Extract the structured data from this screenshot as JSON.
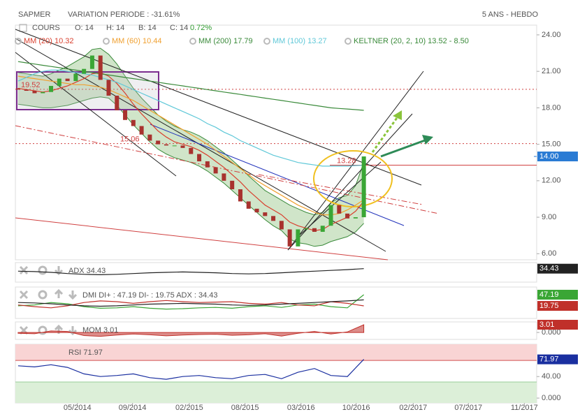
{
  "header": {
    "symbol": "SAPMER",
    "variation": "VARIATION PERIODE : -31.61%",
    "period": "5 ANS - HEBDO",
    "cours": "COURS",
    "open": "O: 14",
    "high": "H: 14",
    "low": "B: 14",
    "close": "C: 14",
    "change": "0.72%"
  },
  "chart_data": [
    {
      "type": "candlestick",
      "xlim": [
        0,
        190
      ],
      "ylim": [
        5.5,
        24.8
      ],
      "yticks": [
        {
          "value": 6,
          "label": "6.00"
        },
        {
          "value": 9,
          "label": "9.00"
        },
        {
          "value": 12,
          "label": "12.00"
        },
        {
          "value": 15,
          "label": "15.00"
        },
        {
          "value": 18,
          "label": "18.00"
        },
        {
          "value": 21,
          "label": "21.00"
        },
        {
          "value": 24,
          "label": "24.00"
        }
      ],
      "x": [
        1,
        4,
        7,
        10,
        13,
        16,
        19,
        22,
        25,
        28,
        31,
        34,
        37,
        40,
        43,
        46,
        49,
        52,
        55,
        58,
        61,
        64,
        67,
        70,
        73,
        76,
        79,
        82,
        85,
        88,
        91,
        94,
        97,
        100,
        103,
        106,
        109,
        112,
        115,
        118,
        121,
        124,
        127
      ],
      "open": [
        19.6,
        19.5,
        19.4,
        19.2,
        19.3,
        19.8,
        20.4,
        20.2,
        20.8,
        21.2,
        22.3,
        20.3,
        19.0,
        17.8,
        17.0,
        16.5,
        15.8,
        15.3,
        15.0,
        14.9,
        14.9,
        14.7,
        14.2,
        13.6,
        13.1,
        12.6,
        12.0,
        11.3,
        10.3,
        9.7,
        9.4,
        9.1,
        8.7,
        8.0,
        6.6,
        8.0,
        8.1,
        7.8,
        8.3,
        10.0,
        9.3,
        8.9,
        9.0
      ],
      "close": [
        19.5,
        19.4,
        19.2,
        19.3,
        19.8,
        20.4,
        20.2,
        20.8,
        21.2,
        22.3,
        20.3,
        19.0,
        17.8,
        17.0,
        16.5,
        15.8,
        15.3,
        15.0,
        14.9,
        14.9,
        14.7,
        14.2,
        13.6,
        13.1,
        12.6,
        12.0,
        11.3,
        10.3,
        9.7,
        9.4,
        9.1,
        8.7,
        8.0,
        6.6,
        8.0,
        8.1,
        7.8,
        8.3,
        10.0,
        9.3,
        8.9,
        9.0,
        14
      ],
      "up_color": "#3aa635",
      "down_color": "#a8322e",
      "series": [
        {
          "name": "MM (20) 10.32",
          "color": "#d9402f",
          "values": [
            19.6,
            19.5,
            19.4,
            19.3,
            19.4,
            19.6,
            19.8,
            20.1,
            20.4,
            20.8,
            20.9,
            20.6,
            20.0,
            19.2,
            18.3,
            17.5,
            16.8,
            16.1,
            15.6,
            15.2,
            15.0,
            14.8,
            14.5,
            14.1,
            13.6,
            13.1,
            12.5,
            11.9,
            11.2,
            10.6,
            10.0,
            9.6,
            9.2,
            8.6,
            8.3,
            8.1,
            7.9,
            8.0,
            8.4,
            8.7,
            9.0,
            9.5,
            10.32
          ]
        },
        {
          "name": "MM (60) 10.44",
          "color": "#f0a030",
          "values": [
            20.6,
            20.5,
            20.4,
            20.3,
            20.2,
            20.1,
            20.0,
            19.9,
            19.9,
            19.8,
            19.7,
            19.5,
            19.2,
            18.9,
            18.6,
            18.2,
            17.8,
            17.4,
            17.0,
            16.6,
            16.2,
            15.8,
            15.4,
            15.0,
            14.5,
            14.0,
            13.5,
            13.0,
            12.5,
            12.0,
            11.6,
            11.2,
            10.8,
            10.4,
            10.0,
            9.7,
            9.4,
            9.2,
            9.2,
            9.3,
            9.6,
            10.0,
            10.44
          ]
        },
        {
          "name": "MM (200) 17.79",
          "color": "#3a8a3a",
          "values": [
            21.8,
            21.7,
            21.6,
            21.5,
            21.4,
            21.3,
            21.2,
            21.1,
            21.0,
            20.9,
            20.8,
            20.7,
            20.6,
            20.5,
            20.4,
            20.3,
            20.2,
            20.1,
            20.0,
            19.9,
            19.8,
            19.7,
            19.6,
            19.5,
            19.4,
            19.3,
            19.2,
            19.1,
            19.0,
            18.9,
            18.8,
            18.7,
            18.6,
            18.5,
            18.4,
            18.3,
            18.2,
            18.1,
            18.0,
            17.95,
            17.9,
            17.85,
            17.79
          ]
        },
        {
          "name": "MM (100) 13.27",
          "color": "#5fc8d8",
          "values": [
            20.2,
            20.5,
            20.8,
            21.0,
            21.1,
            21.1,
            21.0,
            20.9,
            20.8,
            20.7,
            20.5,
            20.3,
            20.1,
            19.8,
            19.5,
            19.2,
            18.9,
            18.6,
            18.3,
            18.0,
            17.7,
            17.4,
            17.1,
            16.7,
            16.4,
            16.0,
            15.7,
            15.3,
            15.0,
            14.7,
            14.4,
            14.1,
            13.9,
            13.7,
            13.5,
            13.4,
            13.3,
            13.2,
            13.2,
            13.2,
            13.2,
            13.25,
            13.27
          ]
        }
      ],
      "keltner": {
        "name": "KELTNER (20, 2, 10) 13.52 - 8.50",
        "color": "#3a8a3a",
        "upper": [
          20.9,
          20.8,
          20.7,
          20.6,
          20.8,
          21.1,
          21.4,
          21.8,
          22.2,
          22.8,
          22.9,
          22.4,
          21.6,
          20.6,
          19.6,
          18.8,
          18.1,
          17.4,
          16.9,
          16.5,
          16.2,
          16.0,
          15.7,
          15.3,
          14.8,
          14.3,
          13.7,
          13.1,
          12.4,
          11.8,
          11.2,
          10.8,
          10.4,
          10.0,
          9.7,
          9.4,
          9.2,
          9.4,
          10.2,
          10.6,
          10.8,
          11.6,
          13.52
        ],
        "lower": [
          18.3,
          18.2,
          18.1,
          18.0,
          18.0,
          18.1,
          18.2,
          18.4,
          18.6,
          18.8,
          18.9,
          18.8,
          18.2,
          17.4,
          16.6,
          15.9,
          15.2,
          14.6,
          14.2,
          13.9,
          13.7,
          13.5,
          13.2,
          12.8,
          12.3,
          11.8,
          11.2,
          10.6,
          10.0,
          9.4,
          8.8,
          8.3,
          7.9,
          7.2,
          6.9,
          6.8,
          6.6,
          6.7,
          7.0,
          7.2,
          7.4,
          7.8,
          8.5
        ]
      },
      "levels": [
        {
          "value": 19.52,
          "style": "dotted"
        },
        {
          "value": 15.06,
          "style": "dotted"
        },
        {
          "value": 13.28,
          "style": "solid"
        }
      ],
      "last": {
        "value": 14,
        "label": "14.00"
      }
    },
    {
      "type": "line",
      "label": "ADX 34.43",
      "xlim": [
        0,
        190
      ],
      "ylim": [
        0,
        50
      ],
      "x": [
        1,
        7,
        13,
        19,
        25,
        31,
        37,
        43,
        49,
        55,
        61,
        67,
        73,
        79,
        85,
        91,
        97,
        103,
        109,
        115,
        121,
        127
      ],
      "series": [
        {
          "name": "ADX",
          "color": "#222222",
          "values": [
            28,
            27,
            25,
            22,
            20,
            19,
            20,
            22,
            24,
            25,
            26,
            25,
            24,
            22,
            21,
            22,
            24,
            26,
            28,
            30,
            32,
            34.43
          ]
        }
      ]
    },
    {
      "type": "line",
      "label": "DMI DI+ : 47.19 DI- : 19.75 ADX : 34.43",
      "xlim": [
        0,
        190
      ],
      "ylim": [
        -11,
        66
      ],
      "x": [
        1,
        7,
        13,
        19,
        25,
        31,
        37,
        43,
        49,
        55,
        61,
        67,
        73,
        79,
        85,
        91,
        97,
        103,
        109,
        115,
        121,
        127
      ],
      "series": [
        {
          "name": "DI+",
          "color": "#3aa635",
          "values": [
            20,
            22,
            28,
            25,
            18,
            14,
            15,
            18,
            14,
            12,
            13,
            15,
            16,
            14,
            18,
            20,
            16,
            22,
            24,
            18,
            15,
            47.19
          ]
        },
        {
          "name": "DI-",
          "color": "#c0302a",
          "values": [
            22,
            18,
            15,
            20,
            28,
            32,
            30,
            26,
            30,
            33,
            30,
            28,
            29,
            30,
            26,
            24,
            28,
            22,
            20,
            30,
            26,
            19.75
          ]
        },
        {
          "name": "ADX",
          "color": "#222222",
          "values": [
            28,
            27,
            25,
            22,
            20,
            19,
            20,
            22,
            24,
            25,
            26,
            25,
            24,
            22,
            21,
            22,
            24,
            26,
            28,
            30,
            32,
            34.43
          ]
        }
      ]
    },
    {
      "type": "area",
      "label": "MOM 3.01",
      "xlim": [
        0,
        190
      ],
      "ylim": [
        -2.7,
        4.1
      ],
      "yticks": [
        {
          "value": 0,
          "label": "0.000"
        }
      ],
      "x": [
        1,
        7,
        13,
        19,
        25,
        31,
        37,
        43,
        49,
        55,
        61,
        67,
        73,
        79,
        85,
        91,
        97,
        103,
        109,
        115,
        121,
        127
      ],
      "series": [
        {
          "name": "MOM",
          "color": "#c0302a",
          "values": [
            -0.3,
            -0.5,
            0.6,
            0.4,
            -1.2,
            -1.5,
            -1.0,
            -0.6,
            -0.9,
            -1.3,
            -1.0,
            -0.8,
            -0.7,
            -1.1,
            -0.9,
            -0.5,
            -1.4,
            -0.3,
            0.4,
            -0.6,
            0.2,
            3.01
          ]
        }
      ]
    },
    {
      "type": "line",
      "label": "RSI 71.97",
      "xlim": [
        0,
        190
      ],
      "ylim": [
        -9,
        100
      ],
      "yticks": [
        {
          "value": 0,
          "label": "0.000"
        },
        {
          "value": 40,
          "label": "40.00"
        }
      ],
      "bands": [
        {
          "from": 70,
          "to": 100,
          "color": "#f9d4d4"
        },
        {
          "from": -9,
          "to": 30,
          "color": "#dcefd8"
        }
      ],
      "x": [
        1,
        7,
        13,
        19,
        25,
        31,
        37,
        43,
        49,
        55,
        61,
        67,
        73,
        79,
        85,
        91,
        97,
        103,
        109,
        115,
        121,
        127
      ],
      "series": [
        {
          "name": "RSI",
          "color": "#1a2fa0",
          "values": [
            60,
            58,
            62,
            57,
            45,
            40,
            42,
            45,
            38,
            35,
            40,
            42,
            38,
            36,
            42,
            44,
            36,
            48,
            55,
            42,
            40,
            71.97
          ]
        }
      ],
      "xticks": [
        {
          "value": 22.6,
          "label": "05/2014"
        },
        {
          "value": 42.7,
          "label": "09/2014"
        },
        {
          "value": 63.4,
          "label": "02/2015"
        },
        {
          "value": 83.7,
          "label": "08/2015"
        },
        {
          "value": 104.1,
          "label": "03/2016"
        },
        {
          "value": 124.2,
          "label": "10/2016"
        },
        {
          "value": 145.0,
          "label": "02/2017"
        },
        {
          "value": 165.1,
          "label": "07/2017"
        },
        {
          "value": 185.5,
          "label": "11/2017"
        }
      ]
    }
  ]
}
